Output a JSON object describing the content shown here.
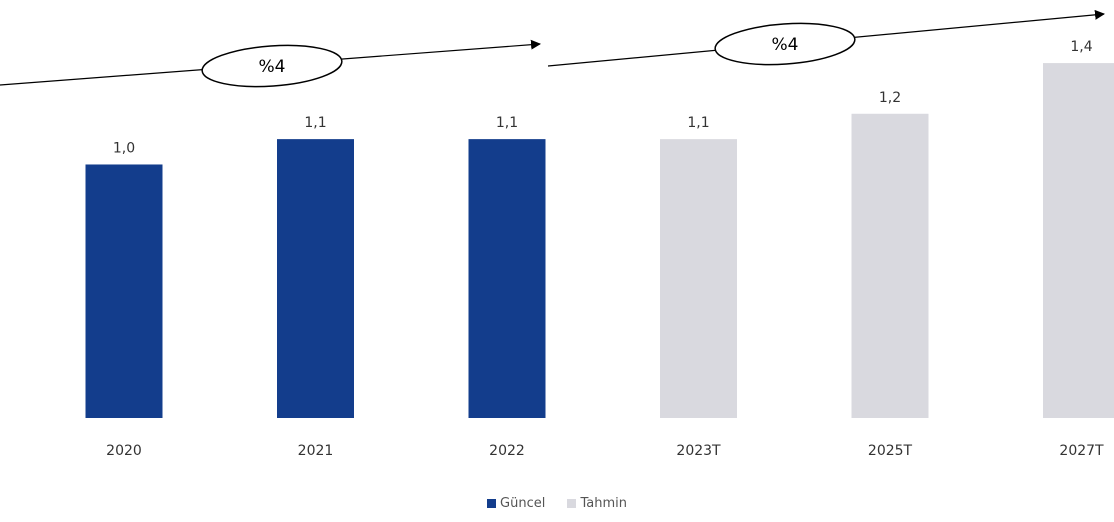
{
  "chart_data": {
    "type": "bar",
    "categories": [
      "2020",
      "2021",
      "2022",
      "2023T",
      "2025T",
      "2027T"
    ],
    "values": [
      1.0,
      1.1,
      1.1,
      1.1,
      1.2,
      1.4
    ],
    "value_labels": [
      "1,0",
      "1,1",
      "1,1",
      "1,1",
      "1,2",
      "1,4"
    ],
    "series_type": [
      "Güncel",
      "Güncel",
      "Güncel",
      "Tahmin",
      "Tahmin",
      "Tahmin"
    ],
    "series": [
      {
        "name": "Güncel",
        "color": "#133d8c"
      },
      {
        "name": "Tahmin",
        "color": "#d9d9df"
      }
    ],
    "growth_annotations": [
      "%4",
      "%4"
    ],
    "title": "",
    "xlabel": "",
    "ylabel": "",
    "ylim": [
      0,
      1.42
    ],
    "legend_position": "bottom-center",
    "grid": false
  },
  "legend": {
    "items": [
      {
        "label": "Güncel",
        "color": "#133d8c"
      },
      {
        "label": "Tahmin",
        "color": "#d9d9df"
      }
    ]
  }
}
